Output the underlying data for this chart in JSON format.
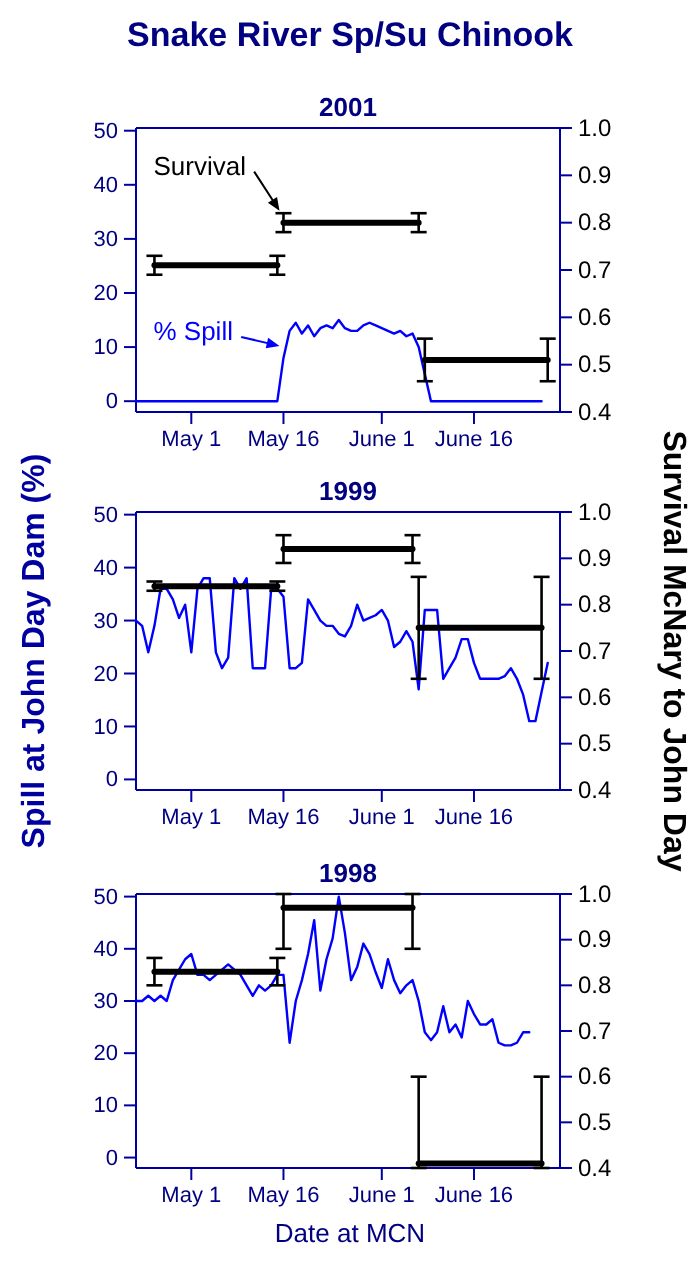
{
  "chart_data": [
    {
      "type": "line",
      "title": "Snake River Sp/Su Chinook",
      "subtitle": "2001",
      "xlim": [
        "--04-22",
        "--06-30"
      ],
      "xticks": [
        {
          "value": "--05-01",
          "label": "May 1"
        },
        {
          "value": "--05-16",
          "label": "May 16"
        },
        {
          "value": "--06-01",
          "label": "June 1"
        },
        {
          "value": "--06-16",
          "label": "June 16"
        }
      ],
      "ylim": [
        -2,
        50.5
      ],
      "yticks": [
        0,
        10,
        20,
        30,
        40,
        50
      ],
      "y2lim": [
        0.4,
        1
      ],
      "y2ticks": [
        {
          "value": 0.4,
          "label": "0.4"
        },
        {
          "value": 0.5,
          "label": "0.5"
        },
        {
          "value": 0.6,
          "label": "0.6"
        },
        {
          "value": 0.7,
          "label": "0.7"
        },
        {
          "value": 0.8,
          "label": "0.8"
        },
        {
          "value": 0.9,
          "label": "0.9"
        },
        {
          "value": 1,
          "label": "1.0"
        }
      ],
      "series": [
        {
          "name": "% Spill",
          "type": "line",
          "color": "#0000ff",
          "x": [
            "--04-22",
            "--05-15",
            "--05-16",
            "--05-17",
            "--05-18",
            "--05-19",
            "--05-20",
            "--05-21",
            "--05-22",
            "--05-23",
            "--05-24",
            "--05-25",
            "--05-26",
            "--05-27",
            "--05-28",
            "--05-29",
            "--05-30",
            "--05-31",
            "--06-01",
            "--06-02",
            "--06-03",
            "--06-04",
            "--06-05",
            "--06-06",
            "--06-07",
            "--06-08",
            "--06-09",
            "--06-27"
          ],
          "values": [
            0,
            0,
            8,
            13,
            14.5,
            12.5,
            14,
            12,
            13.5,
            14,
            13.5,
            15,
            13.5,
            13,
            13,
            14,
            14.5,
            14,
            13.5,
            13,
            12.5,
            13,
            12,
            12.5,
            10,
            5,
            0,
            0
          ]
        },
        {
          "type": "line",
          "axis": "y2",
          "color": "#000000",
          "x": [
            "--04-25",
            "--05-15"
          ],
          "values": [
            0.71,
            0.71
          ],
          "errors": [
            0.02,
            0.02
          ]
        },
        {
          "name": "Survival",
          "type": "line",
          "axis": "y2",
          "color": "#000000",
          "x": [
            "--05-16",
            "--06-07"
          ],
          "values": [
            0.8,
            0.8
          ],
          "errors": [
            0.02,
            0.02
          ]
        },
        {
          "type": "line",
          "axis": "y2",
          "color": "#000000",
          "x": [
            "--06-08",
            "--06-28"
          ],
          "values": [
            0.51,
            0.51
          ],
          "errors": [
            0.045,
            0.045
          ]
        }
      ]
    },
    {
      "type": "line",
      "title": "1999",
      "ylabel": "Spill at John Day Dam (%)",
      "y2label": "Survival McNary to John Day",
      "xlim": [
        "--04-22",
        "--06-30"
      ],
      "xticks": [
        {
          "value": "--05-01",
          "label": "May 1"
        },
        {
          "value": "--05-16",
          "label": "May 16"
        },
        {
          "value": "--06-01",
          "label": "June 1"
        },
        {
          "value": "--06-16",
          "label": "June 16"
        }
      ],
      "ylim": [
        -2,
        50.5
      ],
      "yticks": [
        0,
        10,
        20,
        30,
        40,
        50
      ],
      "y2lim": [
        0.4,
        1
      ],
      "y2ticks": [
        {
          "value": 0.4,
          "label": "0.4"
        },
        {
          "value": 0.5,
          "label": "0.5"
        },
        {
          "value": 0.6,
          "label": "0.6"
        },
        {
          "value": 0.7,
          "label": "0.7"
        },
        {
          "value": 0.8,
          "label": "0.8"
        },
        {
          "value": 0.9,
          "label": "0.9"
        },
        {
          "value": 1,
          "label": "1.0"
        }
      ],
      "series": [
        {
          "type": "line",
          "color": "#0000ff",
          "x": [
            "--04-22",
            "--04-23",
            "--04-24",
            "--04-25",
            "--04-26",
            "--04-27",
            "--04-28",
            "--04-29",
            "--04-30",
            "--05-01",
            "--05-02",
            "--05-03",
            "--05-04",
            "--05-05",
            "--05-06",
            "--05-07",
            "--05-08",
            "--05-09",
            "--05-10",
            "--05-11",
            "--05-12",
            "--05-13",
            "--05-14",
            "--05-15",
            "--05-16",
            "--05-17",
            "--05-18",
            "--05-19",
            "--05-20",
            "--05-21",
            "--05-22",
            "--05-23",
            "--05-24",
            "--05-25",
            "--05-26",
            "--05-27",
            "--05-28",
            "--05-29",
            "--05-30",
            "--05-31",
            "--06-01",
            "--06-02",
            "--06-03",
            "--06-04",
            "--06-05",
            "--06-06",
            "--06-07",
            "--06-08",
            "--06-09",
            "--06-10",
            "--06-11",
            "--06-12",
            "--06-13",
            "--06-14",
            "--06-15",
            "--06-16",
            "--06-17",
            "--06-18",
            "--06-19",
            "--06-20",
            "--06-21",
            "--06-22",
            "--06-23",
            "--06-24",
            "--06-25",
            "--06-26",
            "--06-27",
            "--06-28"
          ],
          "values": [
            30,
            29,
            24,
            29,
            36,
            36,
            34,
            30.5,
            33,
            24,
            36,
            38,
            38,
            24,
            21,
            23,
            38,
            36,
            38,
            21,
            21,
            21,
            36,
            36,
            34.5,
            21,
            21,
            22,
            34,
            32,
            30,
            29,
            29,
            27.5,
            27,
            29,
            33,
            30,
            30.5,
            31,
            32,
            30,
            25,
            26,
            28,
            26,
            17,
            32,
            32,
            32,
            19,
            21,
            23,
            26.5,
            26.5,
            22,
            19,
            19,
            19,
            19,
            19.5,
            21,
            19,
            16,
            11,
            11,
            16.5,
            22
          ]
        },
        {
          "type": "line",
          "axis": "y2",
          "color": "#000000",
          "x": [
            "--04-25",
            "--05-15"
          ],
          "values": [
            0.84,
            0.84
          ],
          "errors": [
            0.01,
            0.01
          ]
        },
        {
          "type": "line",
          "axis": "y2",
          "color": "#000000",
          "x": [
            "--05-16",
            "--06-06"
          ],
          "values": [
            0.92,
            0.92
          ],
          "errors": [
            0.03,
            0.03
          ]
        },
        {
          "type": "line",
          "axis": "y2",
          "color": "#000000",
          "x": [
            "--06-07",
            "--06-27"
          ],
          "values": [
            0.75,
            0.75
          ],
          "errors": [
            0.11,
            0.11
          ]
        }
      ]
    },
    {
      "type": "line",
      "title": "1998",
      "xlabel": "Date at MCN",
      "xlim": [
        "--04-22",
        "--06-30"
      ],
      "xticks": [
        {
          "value": "--05-01",
          "label": "May 1"
        },
        {
          "value": "--05-16",
          "label": "May 16"
        },
        {
          "value": "--06-01",
          "label": "June 1"
        },
        {
          "value": "--06-16",
          "label": "June 16"
        }
      ],
      "ylim": [
        -2,
        50.5
      ],
      "yticks": [
        0,
        10,
        20,
        30,
        40,
        50
      ],
      "y2lim": [
        0.4,
        1
      ],
      "y2ticks": [
        {
          "value": 0.4,
          "label": "0.4"
        },
        {
          "value": 0.5,
          "label": "0.5"
        },
        {
          "value": 0.6,
          "label": "0.6"
        },
        {
          "value": 0.7,
          "label": "0.7"
        },
        {
          "value": 0.8,
          "label": "0.8"
        },
        {
          "value": 0.9,
          "label": "0.9"
        },
        {
          "value": 1,
          "label": "1.0"
        }
      ],
      "series": [
        {
          "type": "line",
          "color": "#0000ff",
          "x": [
            "--04-22",
            "--04-23",
            "--04-24",
            "--04-25",
            "--04-26",
            "--04-27",
            "--04-28",
            "--04-29",
            "--04-30",
            "--05-01",
            "--05-02",
            "--05-03",
            "--05-04",
            "--05-05",
            "--05-06",
            "--05-07",
            "--05-08",
            "--05-09",
            "--05-10",
            "--05-11",
            "--05-12",
            "--05-13",
            "--05-14",
            "--05-15",
            "--05-16",
            "--05-17",
            "--05-18",
            "--05-19",
            "--05-20",
            "--05-21",
            "--05-22",
            "--05-23",
            "--05-24",
            "--05-25",
            "--05-26",
            "--05-27",
            "--05-28",
            "--05-29",
            "--05-30",
            "--05-31",
            "--06-01",
            "--06-02",
            "--06-03",
            "--06-04",
            "--06-05",
            "--06-06",
            "--06-07",
            "--06-08",
            "--06-09",
            "--06-10",
            "--06-11",
            "--06-12",
            "--06-13",
            "--06-14",
            "--06-15",
            "--06-16",
            "--06-17",
            "--06-18",
            "--06-19",
            "--06-20",
            "--06-21",
            "--06-22",
            "--06-23",
            "--06-24",
            "--06-25"
          ],
          "values": [
            30,
            30,
            31,
            30,
            31,
            30,
            34,
            36,
            38,
            39,
            35,
            35,
            34,
            35,
            36,
            37,
            36,
            35,
            33,
            31,
            33,
            32,
            33,
            35,
            35,
            22,
            30,
            34,
            39,
            45.5,
            32,
            38,
            42,
            50,
            43,
            34,
            36.5,
            41,
            39,
            35.5,
            32.5,
            38,
            34,
            31.5,
            33,
            34,
            30,
            24,
            22.5,
            24,
            29,
            24,
            25.5,
            23,
            30,
            27.5,
            25.5,
            25.5,
            26.5,
            22,
            21.5,
            21.5,
            22,
            24,
            24
          ]
        },
        {
          "type": "line",
          "axis": "y2",
          "color": "#000000",
          "x": [
            "--04-25",
            "--05-15"
          ],
          "values": [
            0.83,
            0.83
          ],
          "errors": [
            0.03,
            0.03
          ]
        },
        {
          "type": "line",
          "axis": "y2",
          "color": "#000000",
          "x": [
            "--05-16",
            "--06-06"
          ],
          "values": [
            0.97,
            0.97
          ],
          "errors": [
            [
              0.88,
              1
            ],
            [
              0.88,
              1
            ]
          ]
        },
        {
          "type": "line",
          "axis": "y2",
          "color": "#000000",
          "x": [
            "--06-07",
            "--06-27"
          ],
          "values": [
            0.41,
            0.41
          ],
          "errors": [
            [
              0.4,
              0.6
            ],
            [
              0.4,
              0.6
            ]
          ]
        }
      ]
    }
  ]
}
